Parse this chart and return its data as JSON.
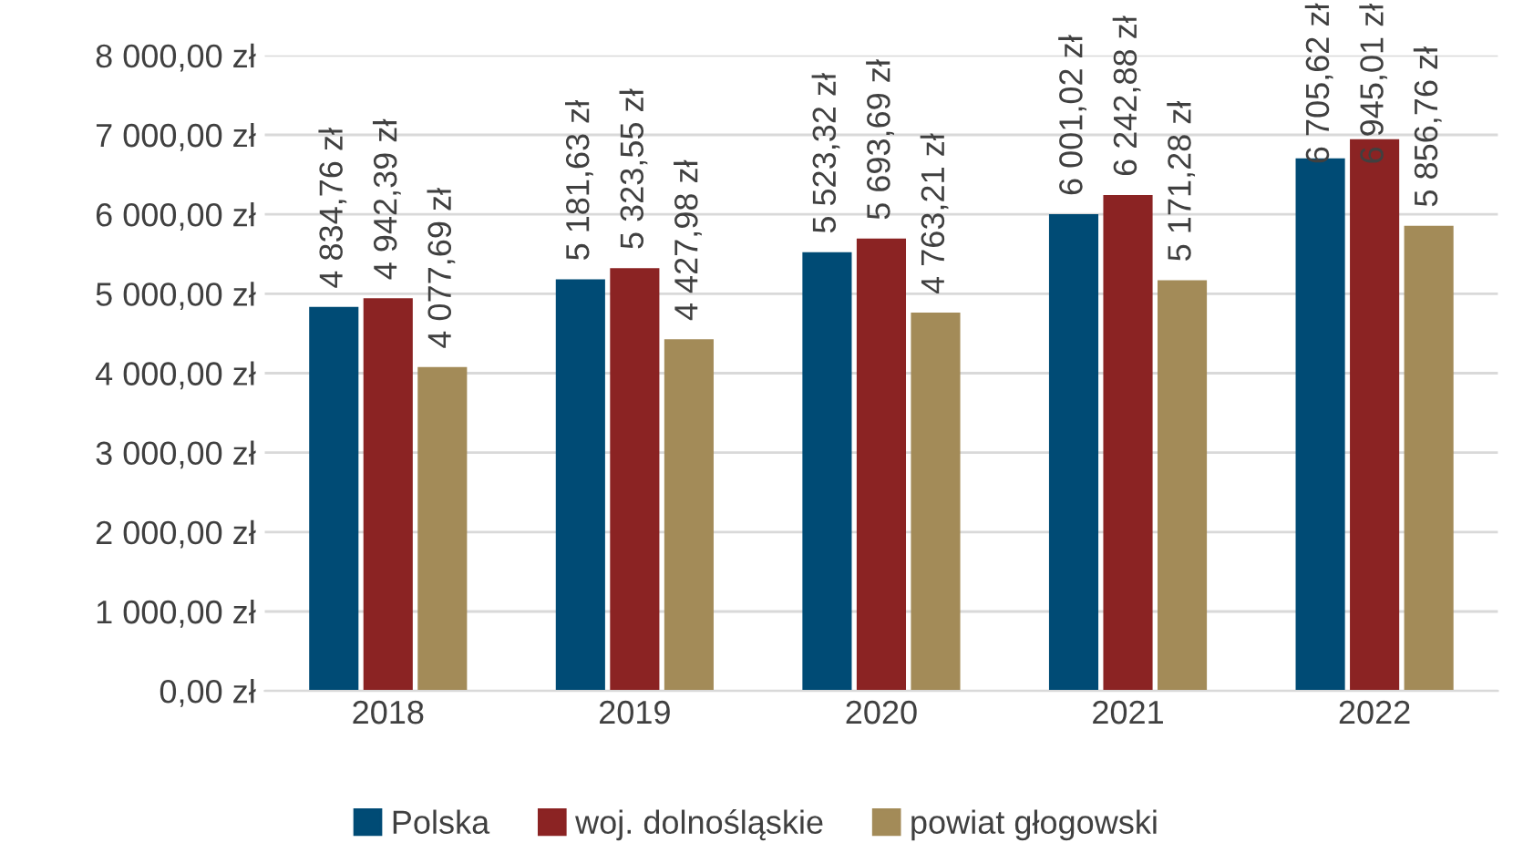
{
  "chart_data": {
    "type": "bar",
    "categories": [
      "2018",
      "2019",
      "2020",
      "2021",
      "2022"
    ],
    "series": [
      {
        "name": "Polska",
        "color": "#004b75",
        "values": [
          4834.76,
          5181.63,
          5523.32,
          6001.02,
          6705.62
        ],
        "value_labels": [
          "4 834,76 zł",
          "5 181,63 zł",
          "5 523,32 zł",
          "6 001,02 zł",
          "6 705,62 zł"
        ]
      },
      {
        "name": "woj. dolnośląskie",
        "color": "#8b2323",
        "values": [
          4942.39,
          5323.55,
          5693.69,
          6242.88,
          6945.01
        ],
        "value_labels": [
          "4 942,39 zł",
          "5 323,55 zł",
          "5 693,69 zł",
          "6 242,88 zł",
          "6 945,01 zł"
        ]
      },
      {
        "name": "powiat głogowski",
        "color": "#a38b58",
        "values": [
          4077.69,
          4427.98,
          4763.21,
          5171.28,
          5856.76
        ],
        "value_labels": [
          "4 077,69 zł",
          "4 427,98 zł",
          "4 763,21 zł",
          "5 171,28 zł",
          "5 856,76 zł"
        ]
      }
    ],
    "ylim": [
      0,
      8000
    ],
    "yticks": [
      {
        "value": 0,
        "label": "0,00 zł"
      },
      {
        "value": 1000,
        "label": "1 000,00 zł"
      },
      {
        "value": 2000,
        "label": "2 000,00 zł"
      },
      {
        "value": 3000,
        "label": "3 000,00 zł"
      },
      {
        "value": 4000,
        "label": "4 000,00 zł"
      },
      {
        "value": 5000,
        "label": "5 000,00 zł"
      },
      {
        "value": 6000,
        "label": "6 000,00 zł"
      },
      {
        "value": 7000,
        "label": "7 000,00 zł"
      },
      {
        "value": 8000,
        "label": "8 000,00 zł"
      }
    ],
    "grid": "y",
    "legend": "bottom"
  }
}
